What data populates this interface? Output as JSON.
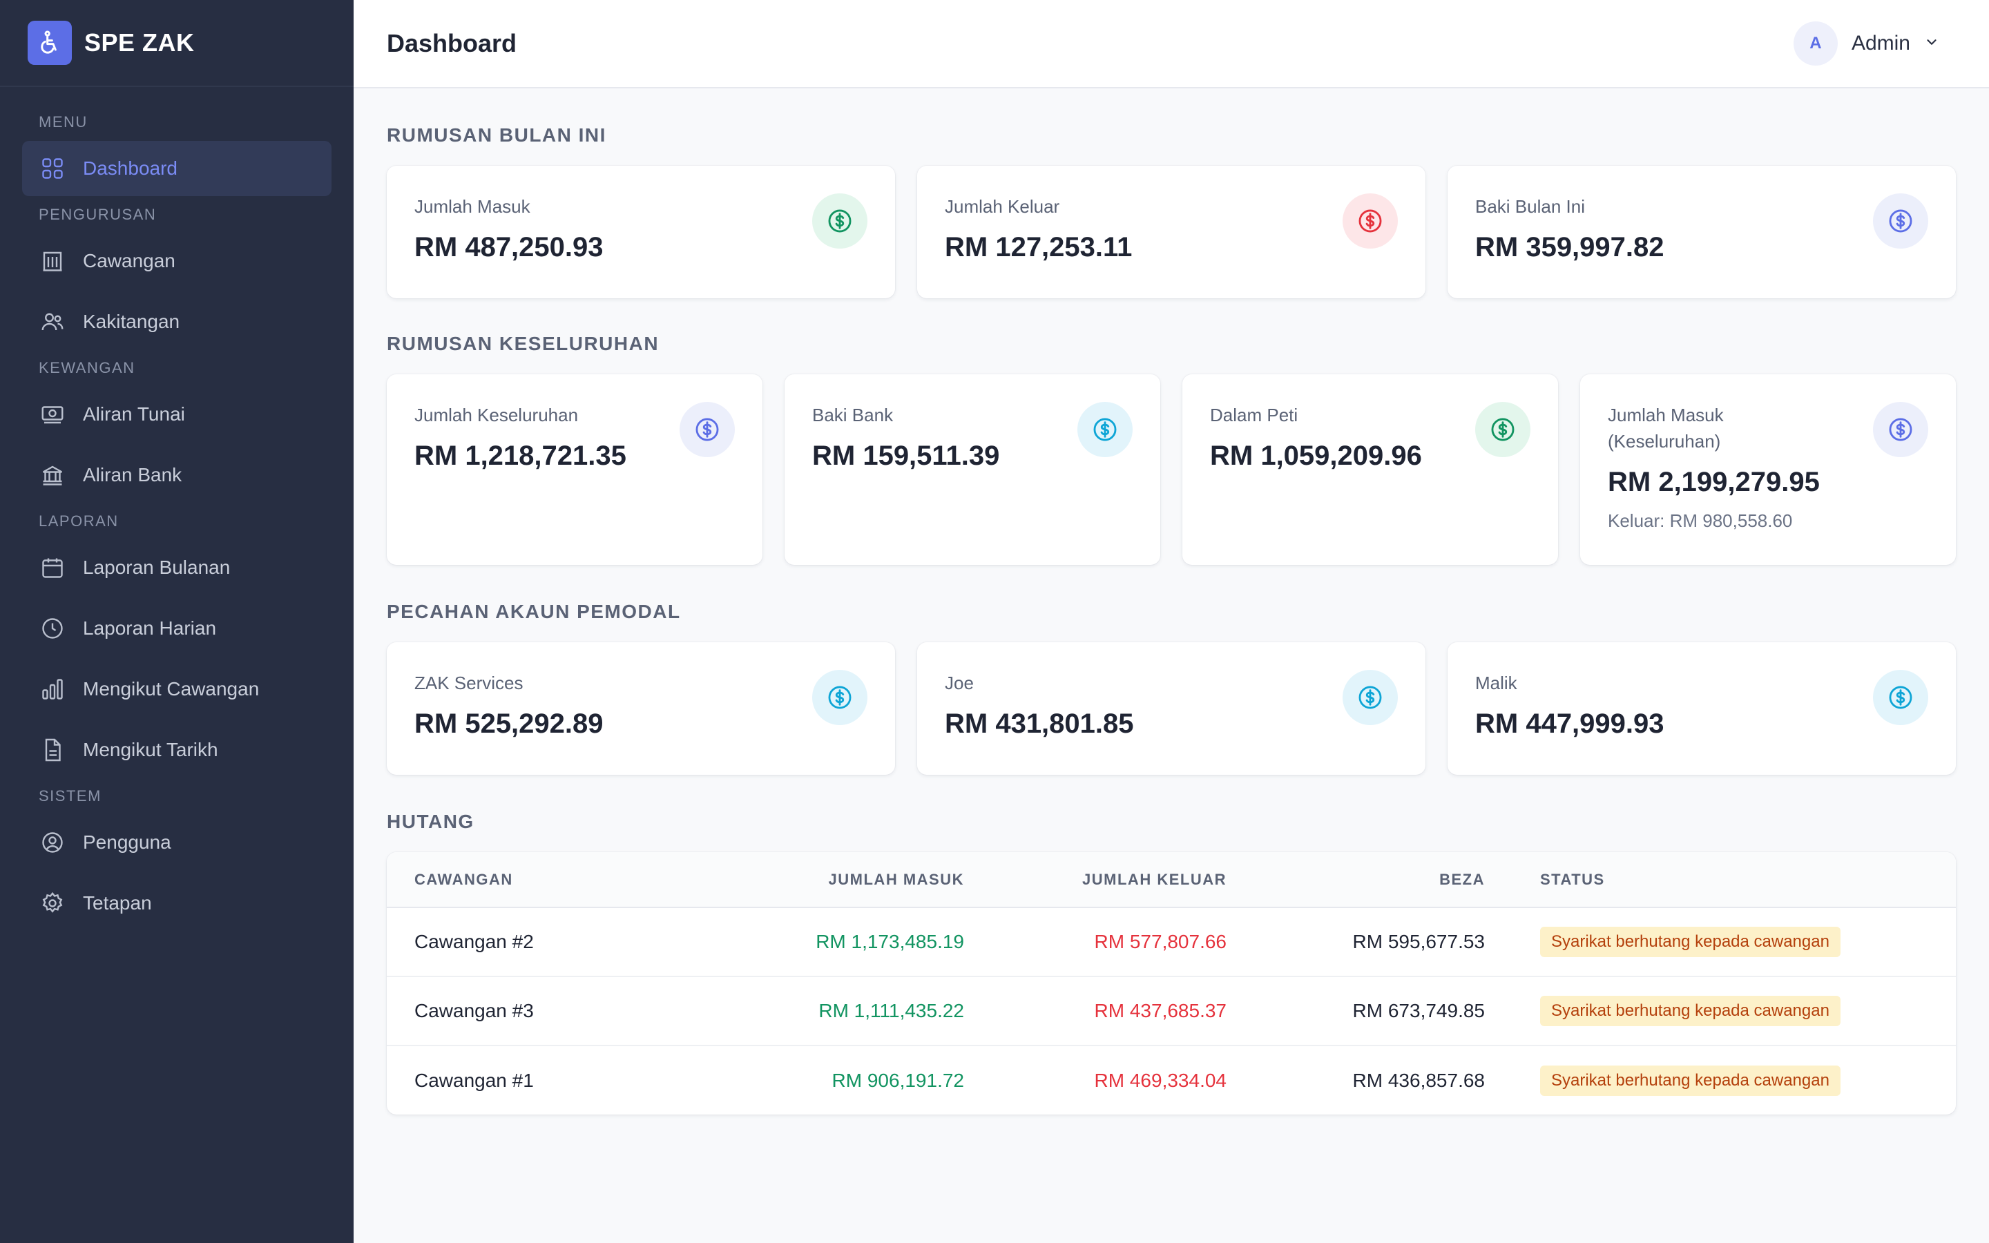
{
  "app": {
    "name": "SPE ZAK"
  },
  "header": {
    "title": "Dashboard",
    "user_initial": "A",
    "user_name": "Admin"
  },
  "sidebar": {
    "sections": [
      {
        "label": "MENU",
        "items": [
          {
            "label": "Dashboard",
            "icon": "grid-icon",
            "active": true
          }
        ]
      },
      {
        "label": "PENGURUSAN",
        "items": [
          {
            "label": "Cawangan",
            "icon": "building-icon"
          },
          {
            "label": "Kakitangan",
            "icon": "users-icon"
          }
        ]
      },
      {
        "label": "KEWANGAN",
        "items": [
          {
            "label": "Aliran Tunai",
            "icon": "cash-icon"
          },
          {
            "label": "Aliran Bank",
            "icon": "bank-icon"
          }
        ]
      },
      {
        "label": "LAPORAN",
        "items": [
          {
            "label": "Laporan Bulanan",
            "icon": "calendar-icon"
          },
          {
            "label": "Laporan Harian",
            "icon": "clock-icon"
          },
          {
            "label": "Mengikut Cawangan",
            "icon": "bar-chart-icon"
          },
          {
            "label": "Mengikut Tarikh",
            "icon": "document-icon"
          }
        ]
      },
      {
        "label": "SISTEM",
        "items": [
          {
            "label": "Pengguna",
            "icon": "user-circle-icon"
          },
          {
            "label": "Tetapan",
            "icon": "gear-icon"
          }
        ]
      }
    ]
  },
  "monthly": {
    "title": "RUMUSAN BULAN INI",
    "cards": [
      {
        "label": "Jumlah Masuk",
        "value": "RM 487,250.93",
        "icon": "dollar-icon",
        "tone": "green"
      },
      {
        "label": "Jumlah Keluar",
        "value": "RM 127,253.11",
        "icon": "dollar-icon",
        "tone": "red"
      },
      {
        "label": "Baki Bulan Ini",
        "value": "RM 359,997.82",
        "icon": "dollar-icon",
        "tone": "indigo"
      }
    ]
  },
  "overall": {
    "title": "RUMUSAN KESELURUHAN",
    "cards": [
      {
        "label": "Jumlah Keseluruhan",
        "value": "RM 1,218,721.35",
        "icon": "dollar-icon",
        "tone": "indigo"
      },
      {
        "label": "Baki Bank",
        "value": "RM 159,511.39",
        "icon": "dollar-icon",
        "tone": "cyan"
      },
      {
        "label": "Dalam Peti",
        "value": "RM 1,059,209.96",
        "icon": "dollar-icon",
        "tone": "green"
      },
      {
        "label": "Jumlah Masuk (Keseluruhan)",
        "value": "RM 2,199,279.95",
        "sub": "Keluar: RM 980,558.60",
        "icon": "dollar-icon",
        "tone": "indigo"
      }
    ]
  },
  "investors": {
    "title": "PECAHAN AKAUN PEMODAL",
    "cards": [
      {
        "label": "ZAK Services",
        "value": "RM 525,292.89",
        "icon": "dollar-icon",
        "tone": "cyan"
      },
      {
        "label": "Joe",
        "value": "RM 431,801.85",
        "icon": "dollar-icon",
        "tone": "cyan"
      },
      {
        "label": "Malik",
        "value": "RM 447,999.93",
        "icon": "dollar-icon",
        "tone": "cyan"
      }
    ]
  },
  "debt": {
    "title": "HUTANG",
    "columns": [
      "CAWANGAN",
      "JUMLAH MASUK",
      "JUMLAH KELUAR",
      "BEZA",
      "STATUS"
    ],
    "rows": [
      {
        "branch": "Cawangan #2",
        "in": "RM 1,173,485.19",
        "out": "RM 577,807.66",
        "diff": "RM 595,677.53",
        "status": "Syarikat berhutang kepada cawangan"
      },
      {
        "branch": "Cawangan #3",
        "in": "RM 1,111,435.22",
        "out": "RM 437,685.37",
        "diff": "RM 673,749.85",
        "status": "Syarikat berhutang kepada cawangan"
      },
      {
        "branch": "Cawangan #1",
        "in": "RM 906,191.72",
        "out": "RM 469,334.04",
        "diff": "RM 436,857.68",
        "status": "Syarikat berhutang kepada cawangan"
      }
    ]
  },
  "colors": {
    "sidebar_bg": "#272e42",
    "accent": "#5c6ee6",
    "green": "#129461",
    "red": "#e5323c",
    "badge_bg": "#fdf1c9",
    "badge_text": "#b4400c"
  }
}
